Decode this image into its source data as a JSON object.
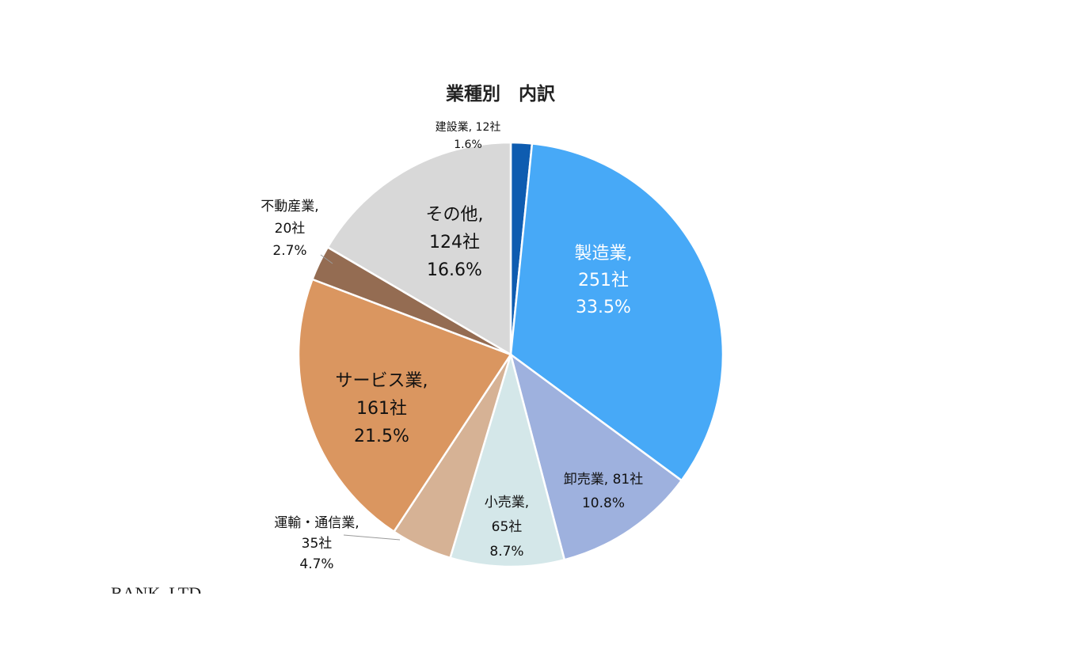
{
  "chart_data": {
    "type": "pie",
    "title": "業種別　内訳",
    "start_angle_deg": 0,
    "direction": "clockwise",
    "slices": [
      {
        "name": "建設業",
        "count": "12社",
        "percent": "1.6%",
        "value": 12,
        "color": "#0e5cb0",
        "line1": "建設業, 12社",
        "line2": "1.6%",
        "line3": ""
      },
      {
        "name": "製造業",
        "count": "251社",
        "percent": "33.5%",
        "value": 251,
        "color": "#47a9f7",
        "line1": "製造業,",
        "line2": "251社",
        "line3": "33.5%"
      },
      {
        "name": "卸売業",
        "count": "81社",
        "percent": "10.8%",
        "value": 81,
        "color": "#9eb1de",
        "line1": "卸売業, 81社",
        "line2": "10.8%",
        "line3": ""
      },
      {
        "name": "小売業",
        "count": "65社",
        "percent": "8.7%",
        "value": 65,
        "color": "#d4e7e9",
        "line1": "小売業,",
        "line2": "65社",
        "line3": "8.7%"
      },
      {
        "name": "運輸・通信業",
        "count": "35社",
        "percent": "4.7%",
        "value": 35,
        "color": "#d6b295",
        "line1": "運輸・通信業,",
        "line2": "35社",
        "line3": "4.7%"
      },
      {
        "name": "サービス業",
        "count": "161社",
        "percent": "21.5%",
        "value": 161,
        "color": "#da9660",
        "line1": "サービス業,",
        "line2": "161社",
        "line3": "21.5%"
      },
      {
        "name": "不動産業",
        "count": "20社",
        "percent": "2.7%",
        "value": 20,
        "color": "#946c52",
        "line1": "不動産業,",
        "line2": "20社",
        "line3": "2.7%"
      },
      {
        "name": "その他",
        "count": "124社",
        "percent": "16.6%",
        "value": 124,
        "color": "#d8d8d8",
        "line1": "その他,",
        "line2": "124社",
        "line3": "16.6%"
      }
    ]
  },
  "footer": {
    "text": "BANK, LTD."
  }
}
